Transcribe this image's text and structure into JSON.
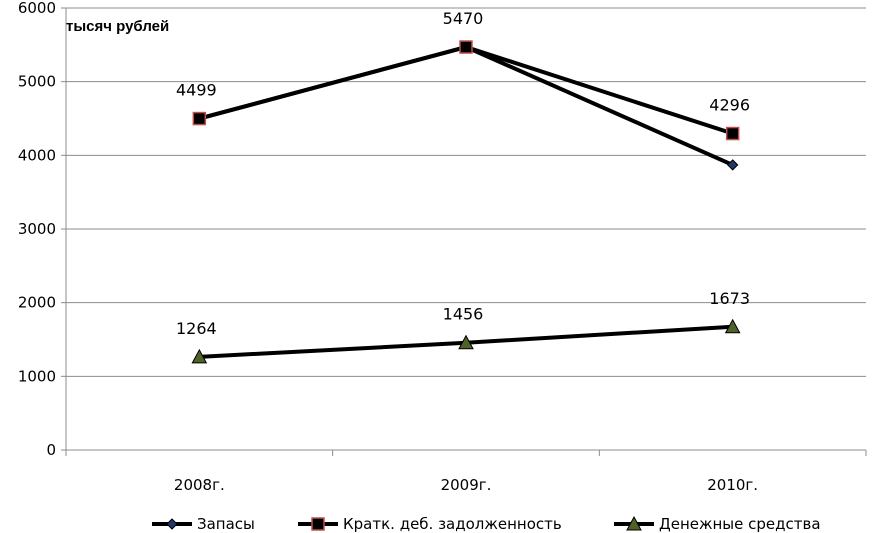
{
  "chart_data": {
    "type": "line",
    "unit_label": "тысяч рублей",
    "categories": [
      "2008г.",
      "2009г.",
      "2010г."
    ],
    "ylim": [
      0,
      6000
    ],
    "yticks": [
      0,
      1000,
      2000,
      3000,
      4000,
      5000,
      6000
    ],
    "grid": true,
    "legend_position": "bottom",
    "series": [
      {
        "name": "Запасы",
        "marker": "diamond",
        "values": [
          4499,
          5470,
          3870
        ],
        "labels": []
      },
      {
        "name": "Кратк. деб. задолженность",
        "marker": "square",
        "values": [
          4499,
          5470,
          4296
        ],
        "labels": [
          "4499",
          "5470",
          "4296"
        ]
      },
      {
        "name": "Денежные средства",
        "marker": "triangle",
        "values": [
          1264,
          1456,
          1673
        ],
        "labels": [
          "1264",
          "1456",
          "1673"
        ]
      }
    ]
  }
}
